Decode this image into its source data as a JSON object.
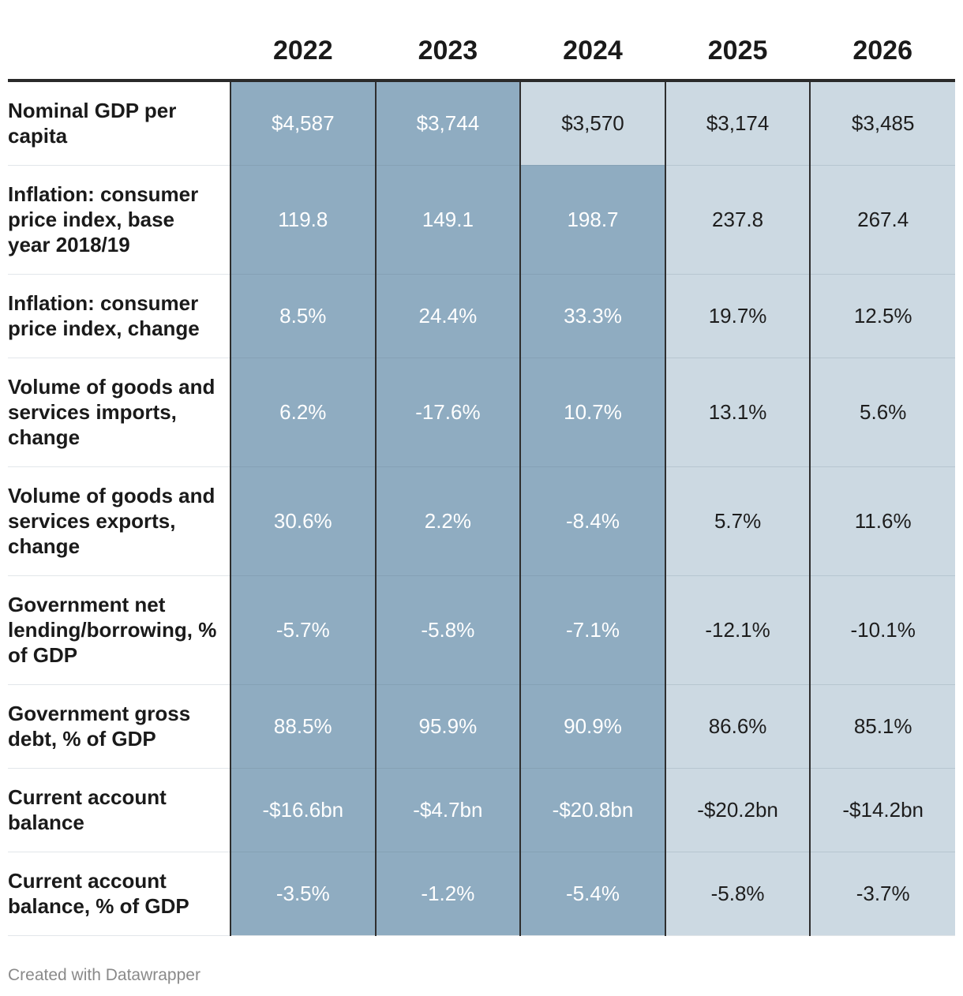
{
  "chart_data": {
    "type": "table",
    "title": "",
    "columns": [
      "2022",
      "2023",
      "2024",
      "2025",
      "2026"
    ],
    "rows": [
      {
        "label": "Nominal GDP per capita",
        "values": [
          "$4,587",
          "$3,744",
          "$3,570",
          "$3,174",
          "$3,485"
        ],
        "shading": [
          "dark",
          "dark",
          "light",
          "light",
          "light"
        ]
      },
      {
        "label": "Inflation: consumer price index, base year 2018/19",
        "values": [
          "119.8",
          "149.1",
          "198.7",
          "237.8",
          "267.4"
        ],
        "shading": [
          "dark",
          "dark",
          "dark",
          "light",
          "light"
        ]
      },
      {
        "label": "Inflation: consumer price index, change",
        "values": [
          "8.5%",
          "24.4%",
          "33.3%",
          "19.7%",
          "12.5%"
        ],
        "shading": [
          "dark",
          "dark",
          "dark",
          "light",
          "light"
        ]
      },
      {
        "label": "Volume of goods and services imports, change",
        "values": [
          "6.2%",
          "-17.6%",
          "10.7%",
          "13.1%",
          "5.6%"
        ],
        "shading": [
          "dark",
          "dark",
          "dark",
          "light",
          "light"
        ]
      },
      {
        "label": "Volume of goods and services exports, change",
        "values": [
          "30.6%",
          "2.2%",
          "-8.4%",
          "5.7%",
          "11.6%"
        ],
        "shading": [
          "dark",
          "dark",
          "dark",
          "light",
          "light"
        ]
      },
      {
        "label": "Government net lending/borrowing, % of GDP",
        "values": [
          "-5.7%",
          "-5.8%",
          "-7.1%",
          "-12.1%",
          "-10.1%"
        ],
        "shading": [
          "dark",
          "dark",
          "dark",
          "light",
          "light"
        ]
      },
      {
        "label": "Government gross debt, % of GDP",
        "values": [
          "88.5%",
          "95.9%",
          "90.9%",
          "86.6%",
          "85.1%"
        ],
        "shading": [
          "dark",
          "dark",
          "dark",
          "light",
          "light"
        ]
      },
      {
        "label": "Current account balance",
        "values": [
          "-$16.6bn",
          "-$4.7bn",
          "-$20.8bn",
          "-$20.2bn",
          "-$14.2bn"
        ],
        "shading": [
          "dark",
          "dark",
          "dark",
          "light",
          "light"
        ]
      },
      {
        "label": "Current account balance, % of GDP",
        "values": [
          "-3.5%",
          "-1.2%",
          "-5.4%",
          "-5.8%",
          "-3.7%"
        ],
        "shading": [
          "dark",
          "dark",
          "dark",
          "light",
          "light"
        ]
      }
    ],
    "colors": {
      "actual": "#8facc1",
      "forecast": "#ccd9e2"
    }
  },
  "footer": {
    "credit": "Created with Datawrapper"
  }
}
